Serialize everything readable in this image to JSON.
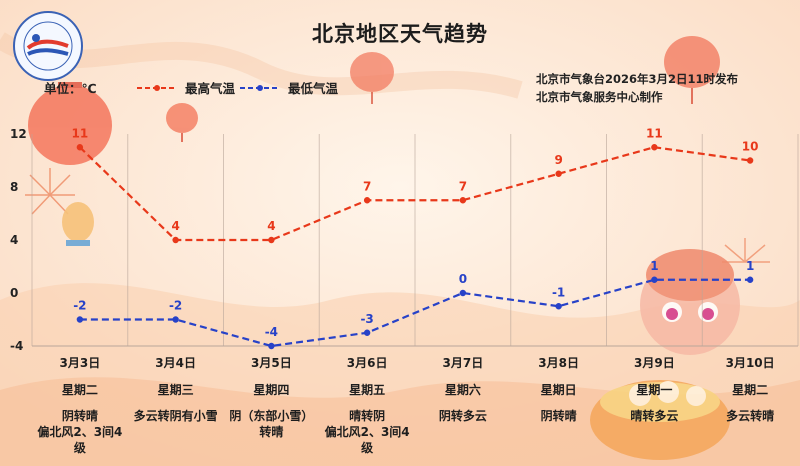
{
  "header": {
    "title": "北京地区天气趋势",
    "unit_label": "单位：℃",
    "issuer_line1": "北京市气象台2026年3月2日11时发布",
    "issuer_line2": "北京市气象服务中心制作"
  },
  "colors": {
    "high": "#e8381a",
    "low": "#2742c8",
    "grid": "#b9a69a"
  },
  "chart_data": {
    "type": "line",
    "ylim": [
      -4,
      12
    ],
    "yticks": [
      "12",
      "8",
      "4",
      "0",
      "-4"
    ],
    "categories": [
      "3月3日",
      "3月4日",
      "3月5日",
      "3月6日",
      "3月7日",
      "3月8日",
      "3月9日",
      "3月10日"
    ],
    "series": [
      {
        "name": "最高气温",
        "values": [
          11,
          4,
          4,
          7,
          7,
          9,
          11,
          10
        ]
      },
      {
        "name": "最低气温",
        "values": [
          -2,
          -2,
          -4,
          -3,
          0,
          -1,
          1,
          1
        ]
      }
    ]
  },
  "days": [
    {
      "date": "3月3日",
      "week": "星期二",
      "weather": "阴转晴",
      "wind": "偏北风2、3间4级"
    },
    {
      "date": "3月4日",
      "week": "星期三",
      "weather": "多云转阴有小雪",
      "wind": ""
    },
    {
      "date": "3月5日",
      "week": "星期四",
      "weather": "阴（东部小雪）转晴",
      "wind": ""
    },
    {
      "date": "3月6日",
      "week": "星期五",
      "weather": "晴转阴",
      "wind": "偏北风2、3间4级"
    },
    {
      "date": "3月7日",
      "week": "星期六",
      "weather": "阴转多云",
      "wind": ""
    },
    {
      "date": "3月8日",
      "week": "星期日",
      "weather": "阴转晴",
      "wind": ""
    },
    {
      "date": "3月9日",
      "week": "星期一",
      "weather": "晴转多云",
      "wind": ""
    },
    {
      "date": "3月10日",
      "week": "星期二",
      "weather": "多云转晴",
      "wind": ""
    }
  ]
}
